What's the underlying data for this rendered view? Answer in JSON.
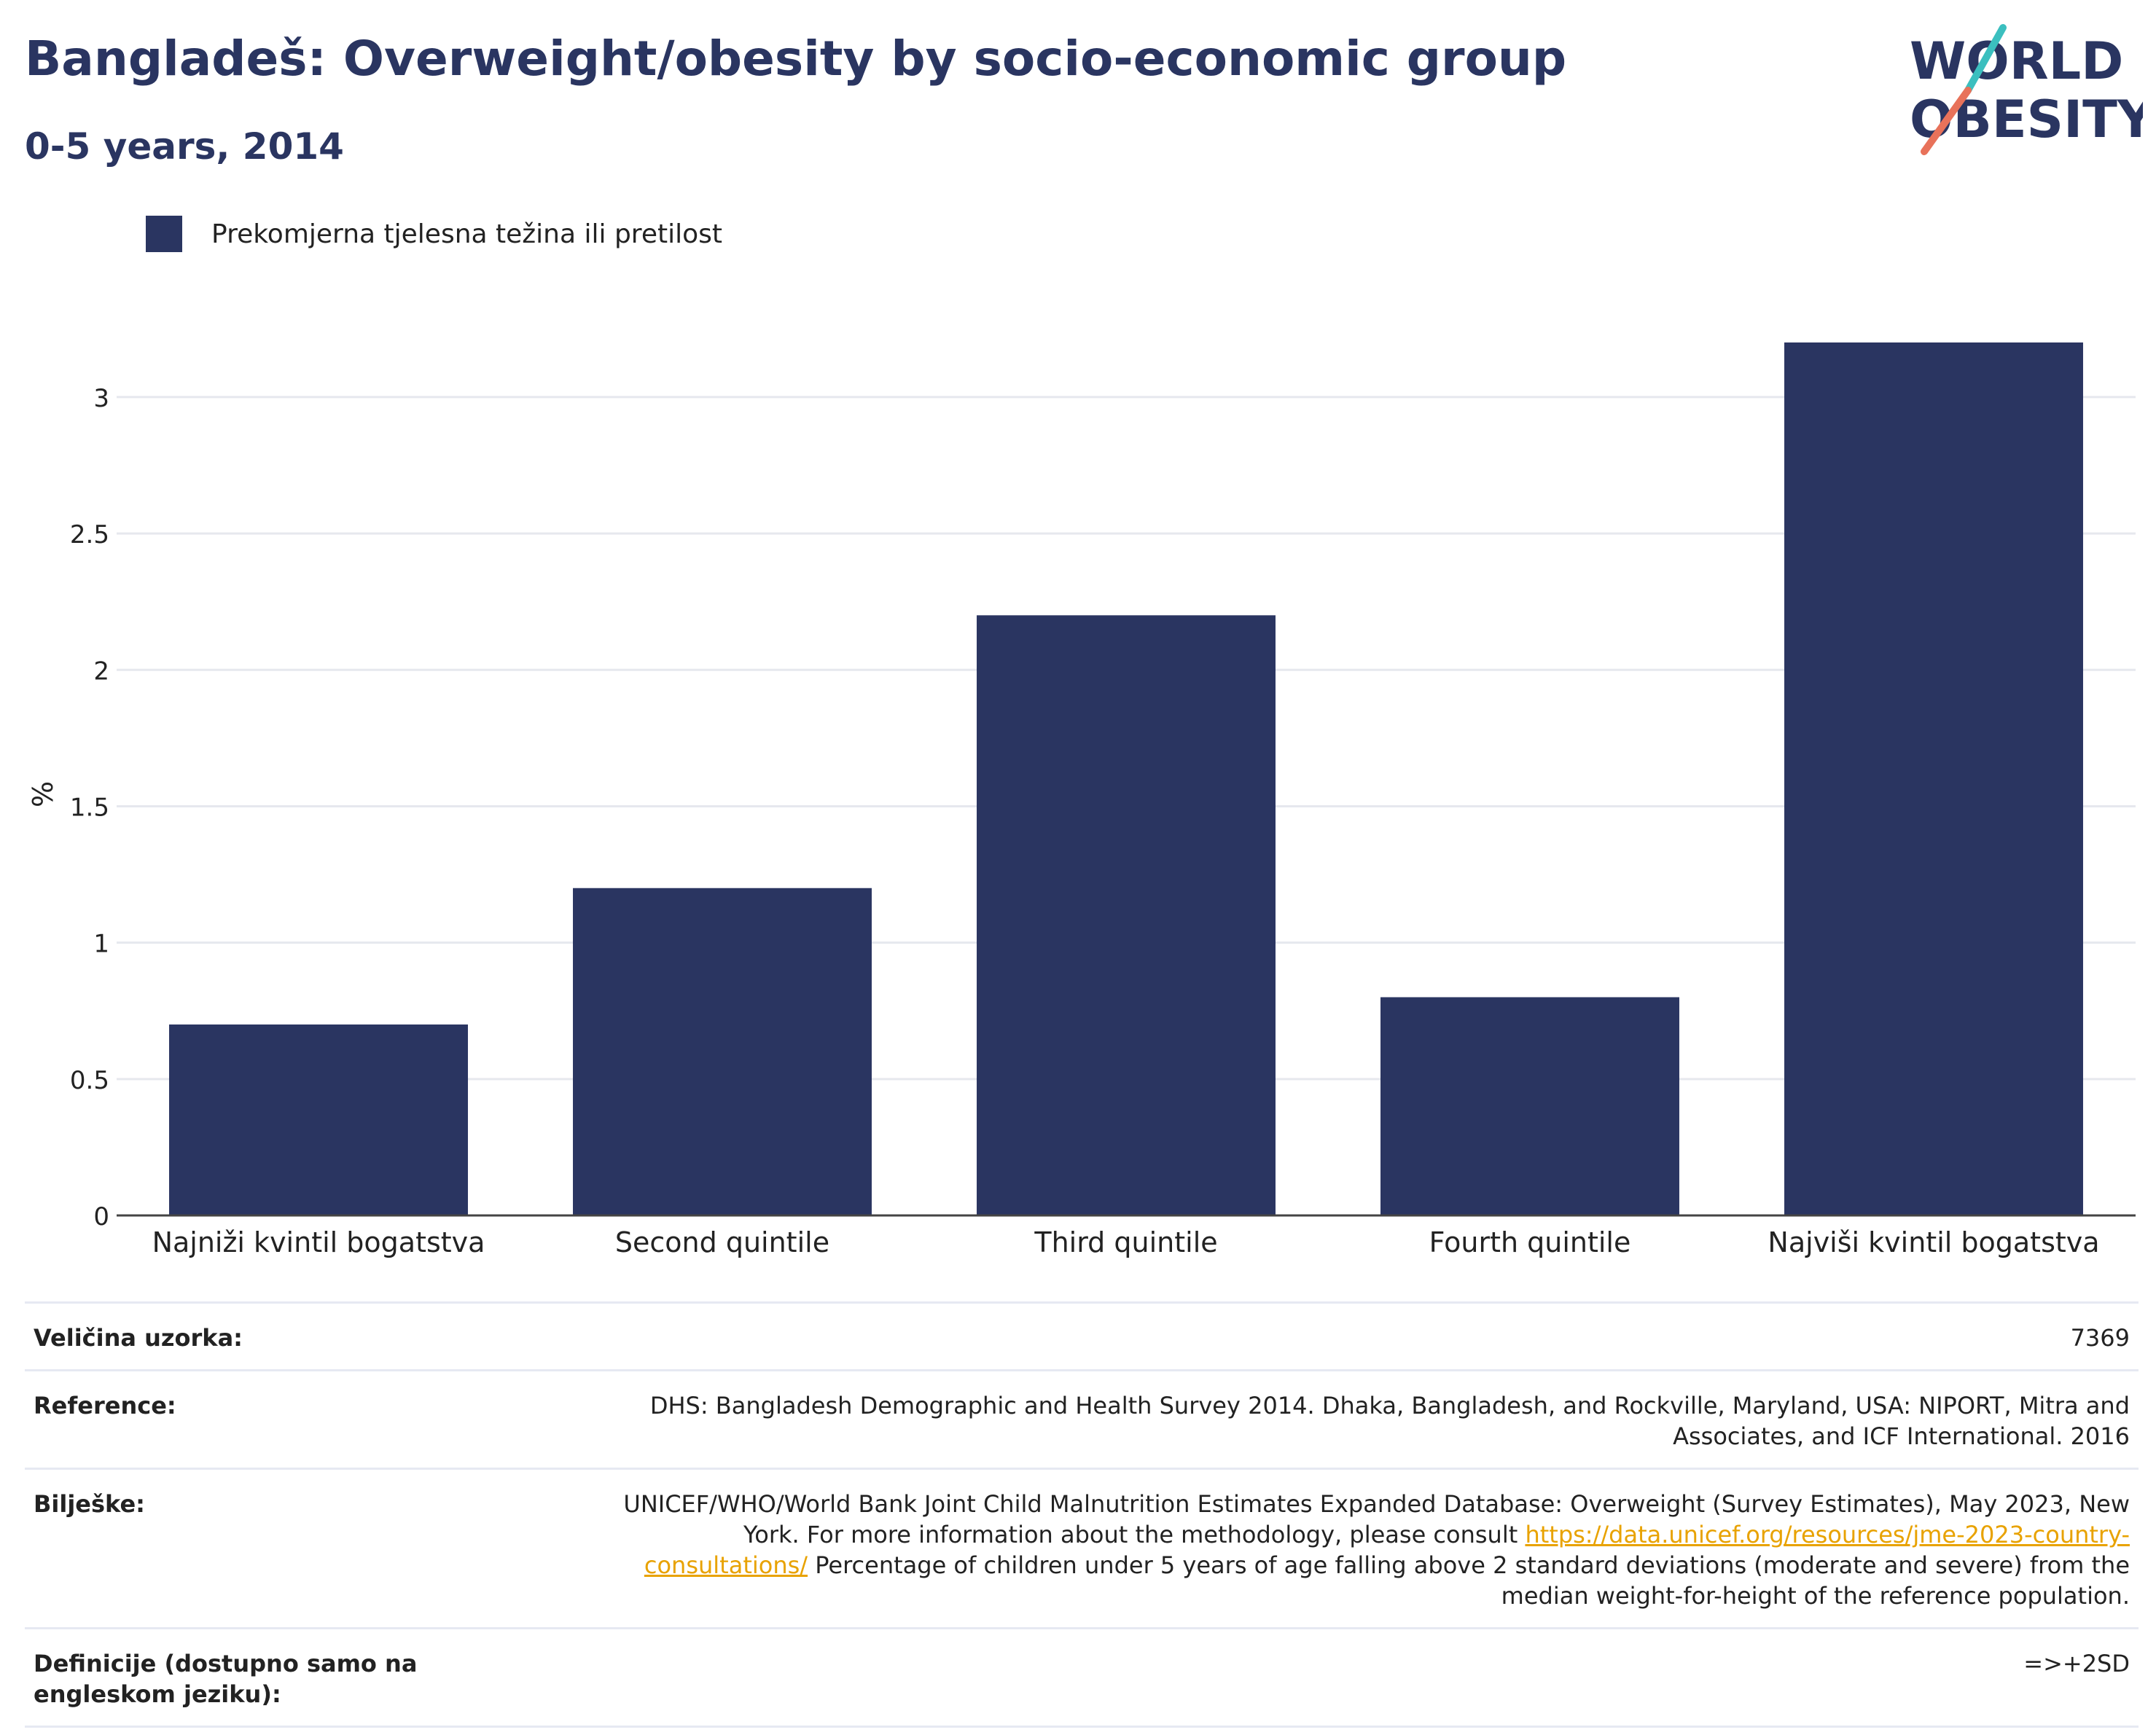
{
  "header": {
    "title": "Bangladeš: Overweight/obesity by socio-economic group",
    "subtitle": "0-5 years, 2014"
  },
  "logo": {
    "line1": "WORLD",
    "line2": "OBESITY",
    "colors": [
      "#2a3561",
      "#3bbfbf",
      "#e8725a"
    ]
  },
  "legend": {
    "label": "Prekomjerna tjelesna težina ili pretilost",
    "color": "#2a3561"
  },
  "chart_data": {
    "type": "bar",
    "categories": [
      "Najniži kvintil bogatstva",
      "Second quintile",
      "Third quintile",
      "Fourth quintile",
      "Najviši kvintil bogatstva"
    ],
    "series": [
      {
        "name": "Prekomjerna tjelesna težina ili pretilost",
        "values": [
          0.7,
          1.2,
          2.2,
          0.8,
          3.2
        ],
        "color": "#2a3561"
      }
    ],
    "ylabel": "%",
    "ylim": [
      0,
      3.2
    ],
    "yticks": [
      0,
      0.5,
      1,
      1.5,
      2,
      2.5,
      3
    ],
    "ytick_labels": [
      "0",
      "0.5",
      "1",
      "1.5",
      "2",
      "2.5",
      "3"
    ],
    "grid": true,
    "legend_position": "top-left"
  },
  "info": {
    "sample_size_label": "Veličina uzorka:",
    "sample_size_value": "7369",
    "reference_label": "Reference:",
    "reference_value": "DHS: Bangladesh Demographic and Health Survey 2014. Dhaka, Bangladesh, and Rockville, Maryland, USA: NIPORT, Mitra and Associates, and ICF International. 2016",
    "notes_label": "Bilješke:",
    "notes_text1": "UNICEF/WHO/World Bank Joint Child Malnutrition Estimates Expanded Database: Overweight (Survey Estimates), May 2023, New York. For more information about the methodology, please consult",
    "notes_link": "https://data.unicef.org/resources/jme-2023-country-consultations/",
    "notes_text2": "Percentage of children under 5 years of age falling above 2 standard deviations (moderate and severe) from the median weight-for-height of the reference population.",
    "definitions_label": "Definicije (dostupno samo na engleskom jeziku):",
    "definitions_value": "=>+2SD"
  }
}
